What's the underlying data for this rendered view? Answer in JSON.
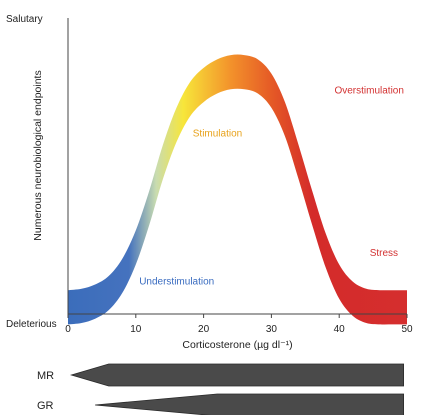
{
  "chart_data": {
    "type": "area",
    "xlabel": "Corticosterone (µg dl⁻¹)",
    "ylabel": "Numerous neurobiological endpoints",
    "y_top_label": "Salutary",
    "y_bottom_label": "Deleterious",
    "x_ticks": [
      "0",
      "10",
      "20",
      "30",
      "40",
      "50"
    ],
    "xlim": [
      0,
      50
    ],
    "ylim": [
      0,
      1
    ],
    "grid": false,
    "band_thickness": 0.12,
    "series": [
      {
        "x": [
          0,
          2,
          4,
          6,
          8,
          10,
          12,
          14,
          16,
          18,
          20,
          22,
          24,
          26,
          28,
          30,
          32,
          34,
          36,
          38,
          40,
          42,
          44,
          46,
          48,
          50
        ],
        "y": [
          0.08,
          0.085,
          0.1,
          0.13,
          0.19,
          0.29,
          0.43,
          0.59,
          0.72,
          0.81,
          0.86,
          0.89,
          0.905,
          0.905,
          0.89,
          0.84,
          0.74,
          0.59,
          0.43,
          0.28,
          0.17,
          0.11,
          0.085,
          0.08,
          0.08,
          0.08
        ]
      }
    ],
    "gradient_colors": [
      {
        "x": 0,
        "color": "#3b6dbb"
      },
      {
        "x": 9,
        "color": "#4572be"
      },
      {
        "x": 13,
        "color": "#c9dcb0"
      },
      {
        "x": 17,
        "color": "#f7e63a"
      },
      {
        "x": 24,
        "color": "#f3922b"
      },
      {
        "x": 30,
        "color": "#e55a26"
      },
      {
        "x": 36,
        "color": "#d42b2a"
      },
      {
        "x": 50,
        "color": "#d52e2e"
      }
    ],
    "annotations": [
      {
        "text": "Understimulation",
        "x": 10.5,
        "y": 0.1,
        "color": "#3a6cc0"
      },
      {
        "text": "Stimulation",
        "x": 18.4,
        "y": 0.62,
        "color": "#e8a31d"
      },
      {
        "text": "Overstimulation",
        "x": 39.3,
        "y": 0.77,
        "color": "#d33232"
      },
      {
        "text": "Stress",
        "x": 44.5,
        "y": 0.2,
        "color": "#d33232"
      }
    ],
    "receptor_bars": [
      {
        "label": "MR",
        "start_x": 0.5,
        "full_x": 6,
        "end_x": 49.5,
        "taper": "left"
      },
      {
        "label": "GR",
        "start_x": 4,
        "full_x": 22,
        "end_x": 49.5,
        "taper": "left-to-full"
      }
    ]
  }
}
